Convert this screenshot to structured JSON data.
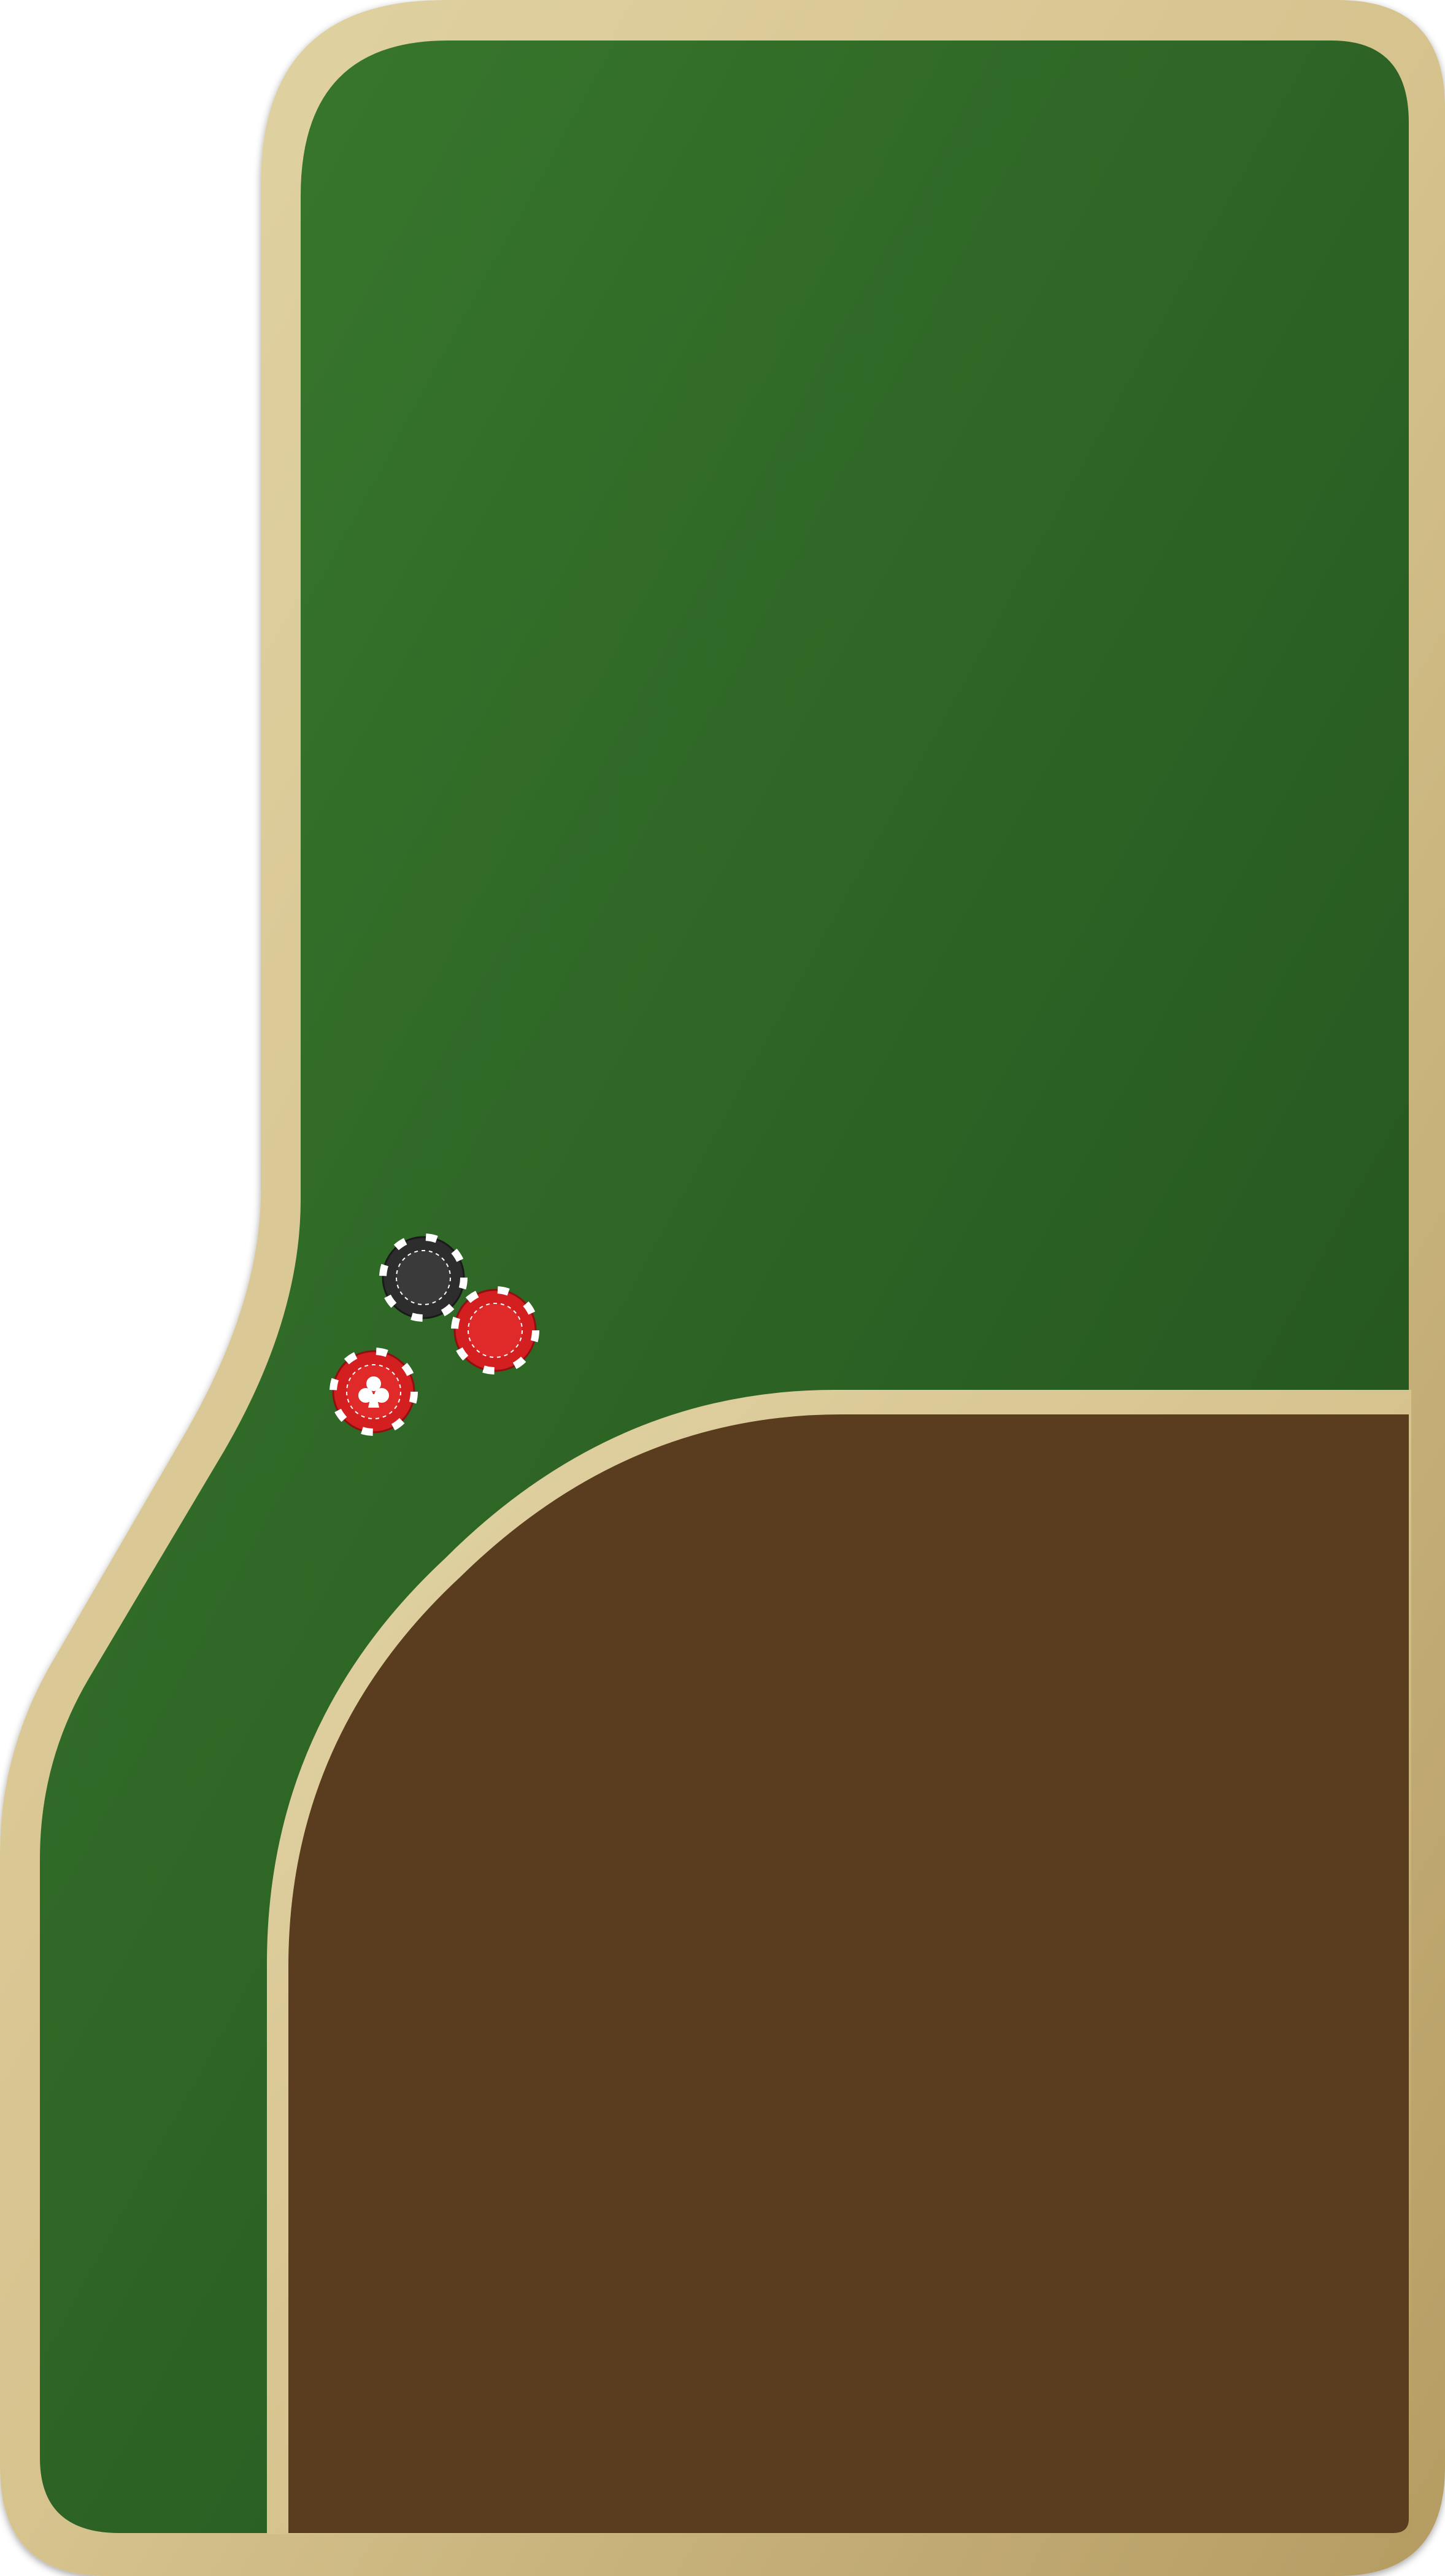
{
  "table": {
    "felt_color_light": "#3a7a2e",
    "felt_color_dark": "#204e1c",
    "wood_color": "#5a3c1e",
    "rail_color_light": "#e2d4a6",
    "rail_color_dark": "#b59c62"
  },
  "chips": [
    {
      "name": "black-chip",
      "color": "#2d2d2d",
      "edge_color": "#ffffff",
      "symbol": ""
    },
    {
      "name": "red-chip",
      "color": "#d31f1f",
      "edge_color": "#ffffff",
      "symbol": ""
    },
    {
      "name": "red-club-chip",
      "color": "#d31f1f",
      "edge_color": "#ffffff",
      "symbol": "club-icon"
    }
  ]
}
